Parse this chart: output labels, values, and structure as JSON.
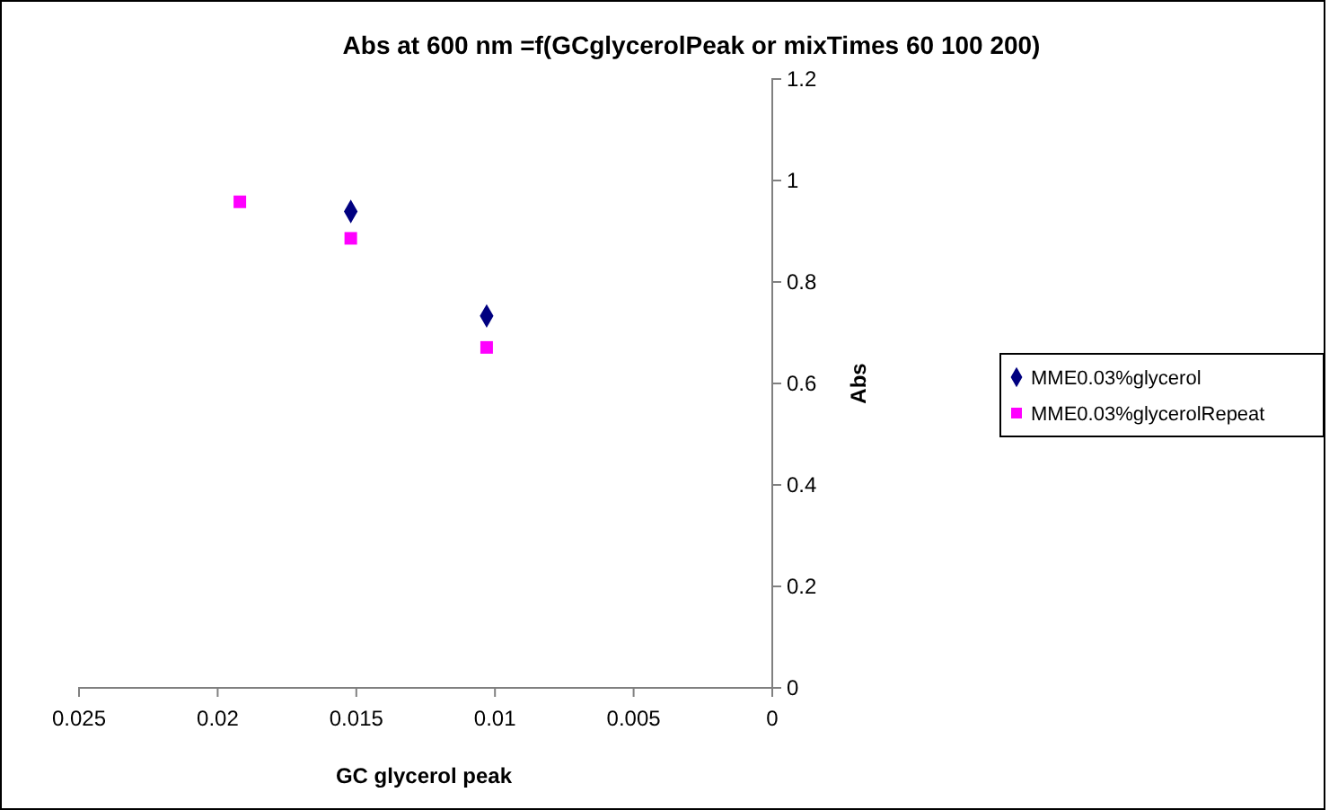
{
  "chart_data": {
    "type": "scatter",
    "title": "Abs at 600 nm =f(GCglycerolPeak or mixTimes 60 100 200)",
    "xlabel": "GC glycerol peak",
    "ylabel": "Abs",
    "series": [
      {
        "name": "MME0.03%glycerol",
        "color": "#000080",
        "marker": "diamond",
        "x": [
          0.0152,
          0.0103
        ],
        "values": [
          0.939,
          0.733
        ]
      },
      {
        "name": "MME0.03%glycerolRepeat",
        "color": "#ff00ff",
        "marker": "square",
        "x": [
          0.0192,
          0.0152,
          0.0103
        ],
        "values": [
          0.958,
          0.886,
          0.671
        ]
      }
    ],
    "xlim": [
      0.025,
      0
    ],
    "xticks": [
      0.025,
      0.02,
      0.015,
      0.01,
      0.005,
      0
    ],
    "ylim": [
      0,
      1.2
    ],
    "yticks": [
      0,
      0.2,
      0.4,
      0.6,
      0.8,
      1,
      1.2
    ],
    "grid": false,
    "legend": "right"
  }
}
